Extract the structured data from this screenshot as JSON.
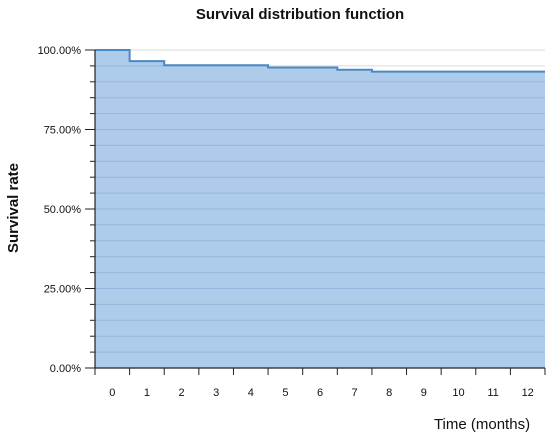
{
  "chart_data": {
    "type": "area",
    "step": true,
    "title": "Survival distribution function",
    "xlabel": "Time (months)",
    "ylabel": "Survival rate",
    "x_ticks": [
      "0",
      "1",
      "2",
      "3",
      "4",
      "5",
      "6",
      "7",
      "8",
      "9",
      "10",
      "11",
      "12"
    ],
    "y_ticks": [
      "0.00%",
      "25.00%",
      "50.00%",
      "75.00%",
      "100.00%"
    ],
    "xlim": [
      -0.5,
      12.5
    ],
    "ylim": [
      0,
      100
    ],
    "grid": true,
    "legend": "none",
    "series": [
      {
        "x": [
          -0.5,
          0.5,
          0.5,
          1.5,
          1.5,
          4.5,
          4.5,
          6.5,
          6.5,
          7.5,
          7.5,
          12.5
        ],
        "y": [
          100,
          100,
          96.5,
          96.5,
          95.2,
          95.2,
          94.5,
          94.5,
          93.8,
          93.8,
          93.2,
          93.2
        ]
      }
    ],
    "colors": {
      "fill": "#aecbea",
      "line": "#4a89c4",
      "grid_in_fill": "#94b7db",
      "grid": "#d9d9d9",
      "axis": "#222222"
    }
  }
}
